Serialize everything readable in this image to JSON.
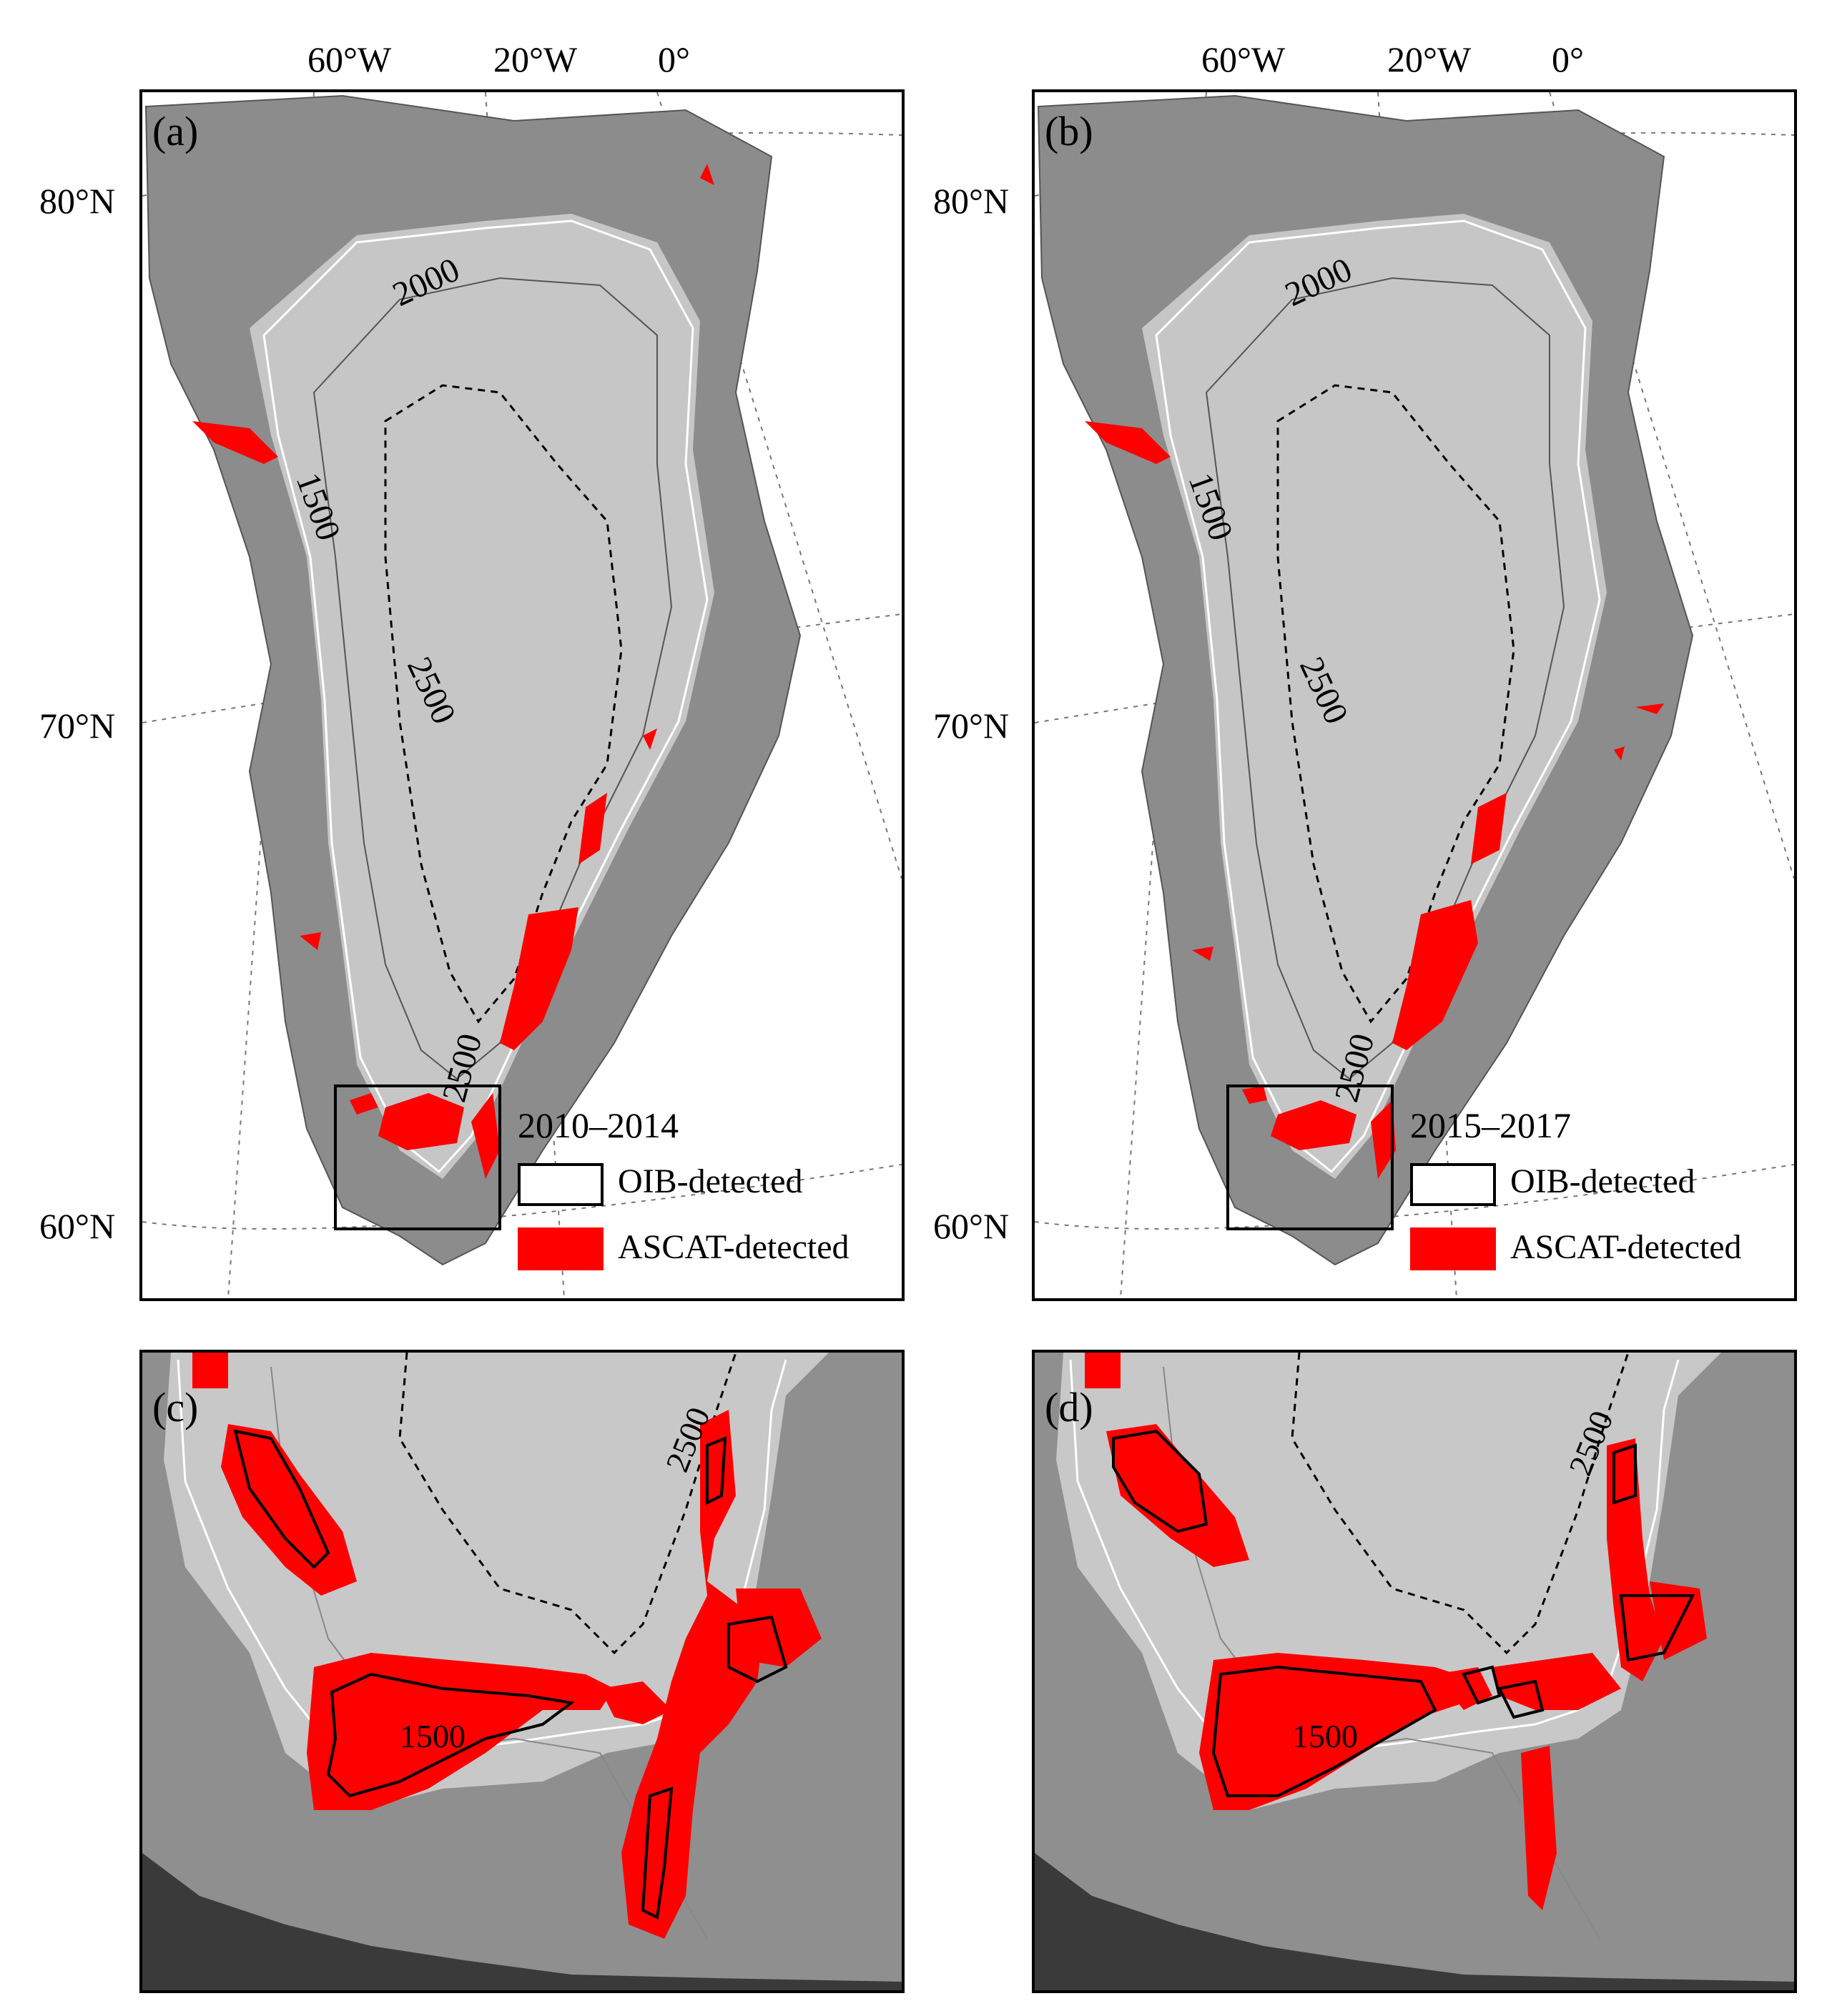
{
  "graticule": {
    "lon_labels": [
      "60°W",
      "20°W",
      "0°"
    ],
    "lat_labels": [
      "80°N",
      "70°N",
      "60°N"
    ]
  },
  "contours": {
    "c1500": "1500",
    "c2000": "2000",
    "c2500": "2500"
  },
  "panels": {
    "a": {
      "label": "(a)",
      "period": "2010–2014"
    },
    "b": {
      "label": "(b)",
      "period": "2015–2017"
    },
    "c": {
      "label": "(c)"
    },
    "d": {
      "label": "(d)"
    }
  },
  "legend": {
    "oib": "OIB-detected",
    "ascat": "ASCAT-detected"
  },
  "colors": {
    "ascat": "#ff0000",
    "ice": "#c8c8c8",
    "rock": "#8c8c8c",
    "frame": "#000000",
    "ela": "#ffffff"
  }
}
